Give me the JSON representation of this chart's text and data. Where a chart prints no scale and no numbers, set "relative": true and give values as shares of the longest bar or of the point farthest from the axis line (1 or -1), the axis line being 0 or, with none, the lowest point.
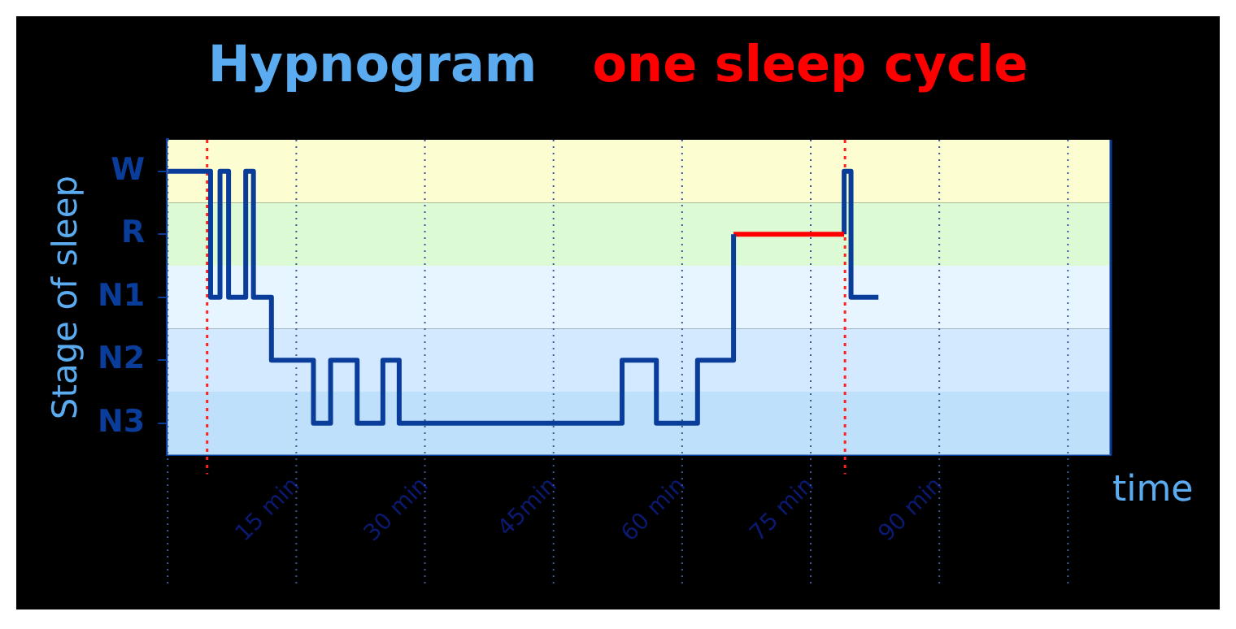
{
  "chart_data": {
    "type": "step",
    "title": "Hypnogram",
    "xlabel": "time",
    "ylabel": "Stage of sleep",
    "relative": true,
    "xlim": [
      0,
      110
    ],
    "xticks": [
      {
        "value": 0,
        "label": null
      },
      {
        "value": 15,
        "label": "15 min"
      },
      {
        "value": 30,
        "label": "30 min"
      },
      {
        "value": 45,
        "label": "45min"
      },
      {
        "value": 60,
        "label": "60 min"
      },
      {
        "value": 75,
        "label": "75 min"
      },
      {
        "value": 90,
        "label": "90 min"
      },
      {
        "value": 105,
        "label": null
      }
    ],
    "y_categories": [
      "W",
      "R",
      "N1",
      "N2",
      "N3"
    ],
    "series": [
      {
        "color": "#0a3d9a",
        "x": [
          0,
          5,
          6.1,
          7.1,
          9.1,
          10,
          12.1,
          17,
          19,
          22.1,
          25.1,
          27,
          53,
          57,
          61.8,
          66
        ],
        "values": [
          1,
          0.5,
          1,
          0.5,
          1,
          0.5,
          0.25,
          0,
          0.25,
          0,
          0.25,
          0,
          0.25,
          0,
          0.25,
          0.75
        ]
      },
      {
        "name": "one sleep cycle",
        "color": "#ff0000",
        "x": [
          66,
          78.9
        ],
        "values": [
          0.75,
          0.75
        ]
      },
      {
        "color": "#0a3d9a",
        "x": [
          78.9,
          78.9,
          79.7,
          82.9
        ],
        "values": [
          0.75,
          1,
          0.5,
          0.5
        ]
      }
    ],
    "bands": [
      {
        "axis": "y",
        "from": 0.875,
        "to": 1.125,
        "color": "#fdfdd2"
      },
      {
        "axis": "y",
        "from": 0.625,
        "to": 0.875,
        "color": "#dcfad4"
      },
      {
        "axis": "y",
        "from": 0.375,
        "to": 0.625,
        "color": "#e6f5ff"
      },
      {
        "axis": "y",
        "from": 0.125,
        "to": 0.375,
        "color": "#d3e9ff"
      },
      {
        "axis": "y",
        "from": -0.125,
        "to": 0.125,
        "color": "#bfe0fb"
      }
    ],
    "ref_lines": [
      {
        "axis": "x",
        "value": 4.6,
        "color": "#ff2020",
        "line_style": "dotted"
      },
      {
        "axis": "x",
        "value": 79,
        "color": "#ff2020",
        "line_style": "dotted"
      }
    ],
    "grid": "x",
    "legend": "top",
    "marker": "none",
    "line_style": "solid"
  }
}
